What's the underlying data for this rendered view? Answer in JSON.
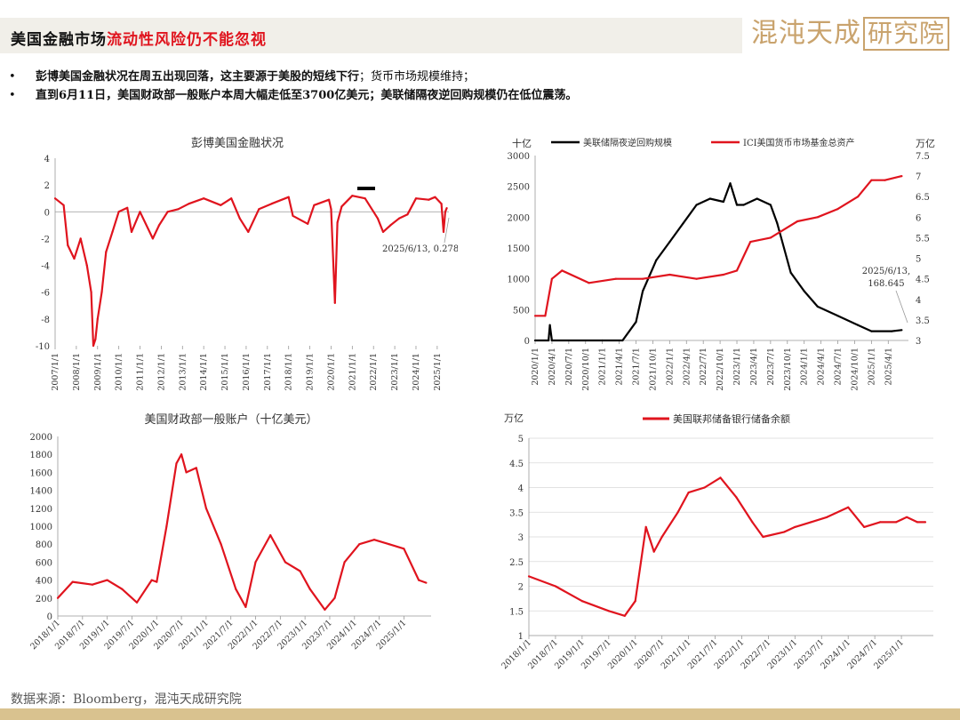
{
  "header": {
    "title_main": "美国金融市场",
    "title_highlight": "流动性风险仍不能忽视",
    "logo_text": "混沌天成",
    "logo_box_text": "研究院"
  },
  "bullets": [
    {
      "symbol": "•",
      "bold": "彭博美国金融状况在周五出现回落，这主要源于美股的短线下行",
      "rest": "；货币市场规模维持；"
    },
    {
      "symbol": "•",
      "bold": "直到6月11日，美国财政部一般账户本周大幅走低至3700亿美元；美联储隔夜逆回购规模仍在低位震荡。",
      "rest": ""
    }
  ],
  "footer": {
    "source": "数据来源：Bloomberg，混沌天成研究院"
  },
  "colors": {
    "red": "#e0141e",
    "black": "#000000",
    "gold": "#c9a36d"
  },
  "chart_data": [
    {
      "type": "line",
      "title": "彭博美国金融状况",
      "x_ticks": [
        "2007/1/1",
        "2008/1/1",
        "2009/1/1",
        "2010/1/1",
        "2011/1/1",
        "2012/1/1",
        "2013/1/1",
        "2014/1/1",
        "2015/1/1",
        "2016/1/1",
        "2017/1/1",
        "2018/1/1",
        "2019/1/1",
        "2020/1/1",
        "2021/1/1",
        "2022/1/1",
        "2023/1/1",
        "2024/1/1",
        "2025/1/1"
      ],
      "y_ticks": [
        "4",
        "2",
        "0",
        "-2",
        "-4",
        "-6",
        "-8",
        "-10"
      ],
      "ylim": [
        -10,
        4
      ],
      "annotation": "2025/6/13, 0.278",
      "series": [
        {
          "color": "#e0141e",
          "x": [
            2007.0,
            2007.4,
            2007.6,
            2007.9,
            2008.2,
            2008.5,
            2008.7,
            2008.8,
            2008.9,
            2009.0,
            2009.2,
            2009.4,
            2009.7,
            2010.0,
            2010.4,
            2010.6,
            2011.0,
            2011.6,
            2011.9,
            2012.3,
            2012.8,
            2013.3,
            2014.0,
            2014.8,
            2015.3,
            2015.7,
            2016.1,
            2016.6,
            2017.2,
            2018.0,
            2018.2,
            2018.9,
            2019.2,
            2019.9,
            2020.0,
            2020.18,
            2020.3,
            2020.5,
            2021.0,
            2021.6,
            2022.2,
            2022.45,
            2022.8,
            2023.2,
            2023.6,
            2024.0,
            2024.6,
            2024.9,
            2025.2,
            2025.3,
            2025.38,
            2025.45
          ],
          "y": [
            1.0,
            0.5,
            -2.5,
            -3.5,
            -2.0,
            -4.0,
            -6.0,
            -10.0,
            -9.5,
            -8.0,
            -6.0,
            -3.0,
            -1.5,
            0.0,
            0.3,
            -1.5,
            0.0,
            -2.0,
            -1.0,
            0.0,
            0.2,
            0.6,
            1.0,
            0.5,
            1.0,
            -0.5,
            -1.5,
            0.2,
            0.6,
            1.1,
            -0.3,
            -0.9,
            0.5,
            0.9,
            0.2,
            -6.8,
            -0.8,
            0.4,
            1.2,
            1.0,
            -0.5,
            -1.5,
            -1.0,
            -0.5,
            -0.2,
            1.0,
            0.9,
            1.1,
            0.6,
            -1.5,
            0.0,
            0.278
          ]
        }
      ]
    },
    {
      "type": "line",
      "title": "",
      "left_unit": "十亿",
      "right_unit": "万亿",
      "x_ticks": [
        "2020/1/1",
        "2020/4/1",
        "2020/7/1",
        "2020/10/1",
        "2021/1/1",
        "2021/4/1",
        "2021/7/1",
        "2021/10/1",
        "2022/1/1",
        "2022/4/1",
        "2022/7/1",
        "2022/10/1",
        "2023/1/1",
        "2023/4/1",
        "2023/7/1",
        "2023/10/1",
        "2024/1/1",
        "2024/4/1",
        "2024/7/1",
        "2024/10/1",
        "2025/1/1",
        "2025/4/1"
      ],
      "y_ticks_left": [
        "3000",
        "2500",
        "2000",
        "1500",
        "1000",
        "500",
        "0"
      ],
      "y_ticks_right": [
        "7.5",
        "7",
        "6.5",
        "6",
        "5.5",
        "5",
        "4.5",
        "4",
        "3.5",
        "3"
      ],
      "ylim_left": [
        0,
        3000
      ],
      "ylim_right": [
        3,
        7.5
      ],
      "annotation": "2025/6/13, 168.645",
      "series": [
        {
          "name": "美联储隔夜逆回购规模",
          "color": "#000000",
          "axis": "left",
          "x": [
            2020.0,
            2020.2,
            2020.22,
            2020.25,
            2021.0,
            2021.3,
            2021.5,
            2021.6,
            2021.8,
            2022.0,
            2022.2,
            2022.4,
            2022.6,
            2022.8,
            2022.9,
            2023.0,
            2023.1,
            2023.3,
            2023.5,
            2023.6,
            2023.7,
            2023.8,
            2024.0,
            2024.2,
            2024.5,
            2024.8,
            2025.0,
            2025.3,
            2025.45
          ],
          "y": [
            0,
            0,
            250,
            0,
            0,
            0,
            300,
            800,
            1300,
            1600,
            1900,
            2200,
            2300,
            2250,
            2550,
            2200,
            2200,
            2300,
            2200,
            1900,
            1500,
            1100,
            800,
            550,
            400,
            250,
            150,
            150,
            168.645
          ]
        },
        {
          "name": "ICI美国货币市场基金总资产",
          "color": "#e0141e",
          "axis": "right",
          "x": [
            2020.0,
            2020.15,
            2020.25,
            2020.4,
            2020.8,
            2021.2,
            2021.6,
            2022.0,
            2022.4,
            2022.8,
            2023.0,
            2023.2,
            2023.5,
            2023.9,
            2024.2,
            2024.5,
            2024.8,
            2025.0,
            2025.2,
            2025.45
          ],
          "y": [
            3.6,
            3.6,
            4.5,
            4.7,
            4.4,
            4.5,
            4.5,
            4.6,
            4.5,
            4.6,
            4.7,
            5.4,
            5.5,
            5.9,
            6.0,
            6.2,
            6.5,
            6.9,
            6.9,
            7.0
          ]
        }
      ]
    },
    {
      "type": "line",
      "title": "美国财政部一般账户（十亿美元）",
      "x_ticks": [
        "2018/1/1",
        "2018/7/1",
        "2019/1/1",
        "2019/7/1",
        "2020/1/1",
        "2020/7/1",
        "2021/1/1",
        "2021/7/1",
        "2022/1/1",
        "2022/7/1",
        "2023/1/1",
        "2023/7/1",
        "2024/1/1",
        "2024/7/1",
        "2025/1/1"
      ],
      "y_ticks": [
        "2000",
        "1800",
        "1600",
        "1400",
        "1200",
        "1000",
        "800",
        "600",
        "400",
        "200",
        "0"
      ],
      "ylim": [
        0,
        2000
      ],
      "series": [
        {
          "color": "#e0141e",
          "x": [
            2018.0,
            2018.3,
            2018.7,
            2019.0,
            2019.3,
            2019.6,
            2019.9,
            2020.0,
            2020.2,
            2020.4,
            2020.5,
            2020.6,
            2020.8,
            2021.0,
            2021.3,
            2021.6,
            2021.8,
            2022.0,
            2022.3,
            2022.6,
            2022.9,
            2023.1,
            2023.4,
            2023.6,
            2023.8,
            2024.1,
            2024.4,
            2024.7,
            2025.0,
            2025.3,
            2025.45
          ],
          "y": [
            200,
            380,
            350,
            400,
            300,
            150,
            400,
            380,
            1000,
            1700,
            1800,
            1600,
            1650,
            1200,
            800,
            300,
            100,
            600,
            900,
            600,
            500,
            300,
            70,
            200,
            600,
            800,
            850,
            800,
            750,
            400,
            370
          ]
        }
      ]
    },
    {
      "type": "line",
      "title": "",
      "left_unit": "万亿",
      "x_ticks": [
        "2018/1/1",
        "2018/7/1",
        "2019/1/1",
        "2019/7/1",
        "2020/1/1",
        "2020/7/1",
        "2021/1/1",
        "2021/7/1",
        "2022/1/1",
        "2022/7/1",
        "2023/1/1",
        "2023/7/1",
        "2024/1/1",
        "2024/7/1",
        "2025/1/1"
      ],
      "y_ticks": [
        "5",
        "4.5",
        "4",
        "3.5",
        "3",
        "2.5",
        "2",
        "1.5",
        "1"
      ],
      "ylim": [
        1,
        5
      ],
      "series": [
        {
          "name": "美国联邦储备银行储备余额",
          "color": "#e0141e",
          "x": [
            2018.0,
            2018.5,
            2019.0,
            2019.5,
            2019.8,
            2020.0,
            2020.2,
            2020.35,
            2020.5,
            2020.8,
            2021.0,
            2021.3,
            2021.6,
            2021.9,
            2022.2,
            2022.4,
            2022.8,
            2023.0,
            2023.3,
            2023.6,
            2024.0,
            2024.3,
            2024.6,
            2024.9,
            2025.1,
            2025.3,
            2025.45
          ],
          "y": [
            2.2,
            2.0,
            1.7,
            1.5,
            1.4,
            1.7,
            3.2,
            2.7,
            3.0,
            3.5,
            3.9,
            4.0,
            4.2,
            3.8,
            3.3,
            3.0,
            3.1,
            3.2,
            3.3,
            3.4,
            3.6,
            3.2,
            3.3,
            3.3,
            3.4,
            3.3,
            3.3
          ]
        }
      ]
    }
  ]
}
